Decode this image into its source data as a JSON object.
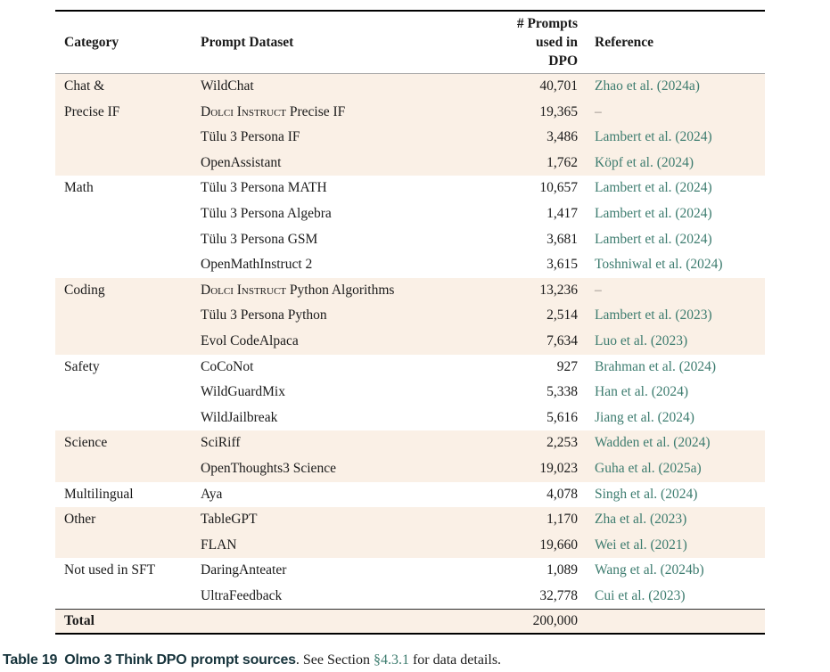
{
  "colors": {
    "citation_teal": "#3d7c6f",
    "row_shade": "#faf0e6",
    "rule_black": "#000000"
  },
  "table": {
    "columns": [
      "Category",
      "Prompt Dataset",
      "# Prompts\nused in\nDPO",
      "Reference"
    ],
    "groups": [
      {
        "category": "Chat &\nPrecise IF",
        "shaded": true,
        "rows": [
          {
            "dataset_parts": [
              {
                "text": "WildChat",
                "smallcaps": false
              }
            ],
            "prompts": "40,701",
            "reference": "Zhao et al. (2024a)",
            "ref_is_link": true
          },
          {
            "dataset_parts": [
              {
                "text": "Dolci Instruct",
                "smallcaps": true
              },
              {
                "text": " Precise IF",
                "smallcaps": false
              }
            ],
            "prompts": "19,365",
            "reference": "–",
            "ref_is_link": false
          },
          {
            "dataset_parts": [
              {
                "text": "Tülu 3 Persona IF",
                "smallcaps": false
              }
            ],
            "prompts": "3,486",
            "reference": "Lambert et al. (2024)",
            "ref_is_link": true
          },
          {
            "dataset_parts": [
              {
                "text": "OpenAssistant",
                "smallcaps": false
              }
            ],
            "prompts": "1,762",
            "reference": "Köpf et al. (2024)",
            "ref_is_link": true
          }
        ]
      },
      {
        "category": "Math",
        "shaded": false,
        "rows": [
          {
            "dataset_parts": [
              {
                "text": "Tülu 3 Persona MATH",
                "smallcaps": false
              }
            ],
            "prompts": "10,657",
            "reference": "Lambert et al. (2024)",
            "ref_is_link": true
          },
          {
            "dataset_parts": [
              {
                "text": "Tülu 3 Persona Algebra",
                "smallcaps": false
              }
            ],
            "prompts": "1,417",
            "reference": "Lambert et al. (2024)",
            "ref_is_link": true
          },
          {
            "dataset_parts": [
              {
                "text": "Tülu 3 Persona GSM",
                "smallcaps": false
              }
            ],
            "prompts": "3,681",
            "reference": "Lambert et al. (2024)",
            "ref_is_link": true
          },
          {
            "dataset_parts": [
              {
                "text": "OpenMathInstruct 2",
                "smallcaps": false
              }
            ],
            "prompts": "3,615",
            "reference": "Toshniwal et al. (2024)",
            "ref_is_link": true
          }
        ]
      },
      {
        "category": "Coding",
        "shaded": true,
        "rows": [
          {
            "dataset_parts": [
              {
                "text": "Dolci Instruct",
                "smallcaps": true
              },
              {
                "text": " Python Algorithms",
                "smallcaps": false
              }
            ],
            "prompts": "13,236",
            "reference": "–",
            "ref_is_link": false
          },
          {
            "dataset_parts": [
              {
                "text": "Tülu 3 Persona Python",
                "smallcaps": false
              }
            ],
            "prompts": "2,514",
            "reference": "Lambert et al. (2023)",
            "ref_is_link": true
          },
          {
            "dataset_parts": [
              {
                "text": "Evol CodeAlpaca",
                "smallcaps": false
              }
            ],
            "prompts": "7,634",
            "reference": "Luo et al. (2023)",
            "ref_is_link": true
          }
        ]
      },
      {
        "category": "Safety",
        "shaded": false,
        "rows": [
          {
            "dataset_parts": [
              {
                "text": "CoCoNot",
                "smallcaps": false
              }
            ],
            "prompts": "927",
            "reference": "Brahman et al. (2024)",
            "ref_is_link": true
          },
          {
            "dataset_parts": [
              {
                "text": "WildGuardMix",
                "smallcaps": false
              }
            ],
            "prompts": "5,338",
            "reference": "Han et al. (2024)",
            "ref_is_link": true
          },
          {
            "dataset_parts": [
              {
                "text": "WildJailbreak",
                "smallcaps": false
              }
            ],
            "prompts": "5,616",
            "reference": "Jiang et al. (2024)",
            "ref_is_link": true
          }
        ]
      },
      {
        "category": "Science",
        "shaded": true,
        "rows": [
          {
            "dataset_parts": [
              {
                "text": "SciRiff",
                "smallcaps": false
              }
            ],
            "prompts": "2,253",
            "reference": "Wadden et al. (2024)",
            "ref_is_link": true
          },
          {
            "dataset_parts": [
              {
                "text": "OpenThoughts3 Science",
                "smallcaps": false
              }
            ],
            "prompts": "19,023",
            "reference": "Guha et al. (2025a)",
            "ref_is_link": true
          }
        ]
      },
      {
        "category": "Multilingual",
        "shaded": false,
        "rows": [
          {
            "dataset_parts": [
              {
                "text": "Aya",
                "smallcaps": false
              }
            ],
            "prompts": "4,078",
            "reference": "Singh et al. (2024)",
            "ref_is_link": true
          }
        ]
      },
      {
        "category": "Other",
        "shaded": true,
        "rows": [
          {
            "dataset_parts": [
              {
                "text": "TableGPT",
                "smallcaps": false
              }
            ],
            "prompts": "1,170",
            "reference": "Zha et al. (2023)",
            "ref_is_link": true
          },
          {
            "dataset_parts": [
              {
                "text": "FLAN",
                "smallcaps": false
              }
            ],
            "prompts": "19,660",
            "reference": "Wei et al. (2021)",
            "ref_is_link": true
          }
        ]
      },
      {
        "category": "Not used in SFT",
        "shaded": false,
        "rows": [
          {
            "dataset_parts": [
              {
                "text": "DaringAnteater",
                "smallcaps": false
              }
            ],
            "prompts": "1,089",
            "reference": "Wang et al. (2024b)",
            "ref_is_link": true
          },
          {
            "dataset_parts": [
              {
                "text": "UltraFeedback",
                "smallcaps": false
              }
            ],
            "prompts": "32,778",
            "reference": "Cui et al. (2023)",
            "ref_is_link": true
          }
        ]
      }
    ],
    "total": {
      "label": "Total",
      "value": "200,000"
    }
  },
  "caption": {
    "label": "Table 19",
    "title": "Olmo 3 Think DPO prompt sources",
    "title_period": ".",
    "text_before_link": " See Section ",
    "link": "§4.3.1",
    "text_after_link": " for data details."
  }
}
